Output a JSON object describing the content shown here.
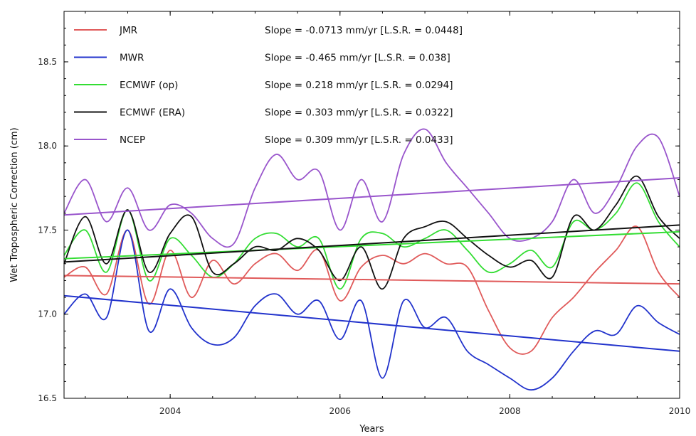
{
  "chart_data": {
    "type": "line",
    "title": "",
    "xlabel": "Years",
    "ylabel": "Wet Tropospheric Correction (cm)",
    "xlim": [
      2002.75,
      2010.0
    ],
    "ylim": [
      16.5,
      18.8
    ],
    "xticks": [
      2004,
      2006,
      2008,
      2010
    ],
    "xtick_labels": [
      "2004",
      "2006",
      "2008",
      "2010"
    ],
    "yticks": [
      16.5,
      17.0,
      17.5,
      18.0,
      18.5
    ],
    "ytick_labels": [
      "16.5",
      "17.0",
      "17.5",
      "18.0",
      "18.5"
    ],
    "grid": false,
    "legend_position": "top-left",
    "series": [
      {
        "name": "JMR",
        "color": "#e05a5a",
        "annotation": "Slope = -0.0713 mm/yr [L.S.R. = 0.0448]",
        "x": [
          2002.75,
          2003.0,
          2003.25,
          2003.5,
          2003.75,
          2004.0,
          2004.25,
          2004.5,
          2004.75,
          2005.0,
          2005.25,
          2005.5,
          2005.75,
          2006.0,
          2006.25,
          2006.5,
          2006.75,
          2007.0,
          2007.25,
          2007.5,
          2007.75,
          2008.0,
          2008.25,
          2008.5,
          2008.75,
          2009.0,
          2009.25,
          2009.5,
          2009.75,
          2010.0
        ],
        "y": [
          17.22,
          17.28,
          17.12,
          17.5,
          17.06,
          17.38,
          17.1,
          17.32,
          17.18,
          17.3,
          17.36,
          17.26,
          17.38,
          17.08,
          17.28,
          17.35,
          17.3,
          17.36,
          17.3,
          17.28,
          17.02,
          16.8,
          16.78,
          16.98,
          17.1,
          17.25,
          17.38,
          17.52,
          17.25,
          17.1
        ],
        "trend": {
          "x": [
            2002.75,
            2010.0
          ],
          "y": [
            17.23,
            17.18
          ]
        }
      },
      {
        "name": "MWR",
        "color": "#2233cc",
        "annotation": "Slope = -0.465 mm/yr [L.S.R. = 0.038]",
        "x": [
          2002.75,
          2003.0,
          2003.25,
          2003.5,
          2003.75,
          2004.0,
          2004.25,
          2004.5,
          2004.75,
          2005.0,
          2005.25,
          2005.5,
          2005.75,
          2006.0,
          2006.25,
          2006.5,
          2006.75,
          2007.0,
          2007.25,
          2007.5,
          2007.75,
          2008.0,
          2008.25,
          2008.5,
          2008.75,
          2009.0,
          2009.25,
          2009.5,
          2009.75,
          2010.0
        ],
        "y": [
          17.0,
          17.12,
          16.98,
          17.5,
          16.9,
          17.15,
          16.92,
          16.82,
          16.86,
          17.05,
          17.12,
          17.0,
          17.08,
          16.85,
          17.08,
          16.62,
          17.08,
          16.92,
          16.98,
          16.78,
          16.7,
          16.62,
          16.55,
          16.62,
          16.78,
          16.9,
          16.88,
          17.05,
          16.95,
          16.88
        ],
        "trend": {
          "x": [
            2002.75,
            2010.0
          ],
          "y": [
            17.11,
            16.78
          ]
        }
      },
      {
        "name": "ECMWF (op)",
        "color": "#33dd33",
        "annotation": "Slope = 0.218 mm/yr [L.S.R. = 0.0294]",
        "x": [
          2002.75,
          2003.0,
          2003.25,
          2003.5,
          2003.75,
          2004.0,
          2004.25,
          2004.5,
          2004.75,
          2005.0,
          2005.25,
          2005.5,
          2005.75,
          2006.0,
          2006.25,
          2006.5,
          2006.75,
          2007.0,
          2007.25,
          2007.5,
          2007.75,
          2008.0,
          2008.25,
          2008.5,
          2008.75,
          2009.0,
          2009.25,
          2009.5,
          2009.75,
          2010.0
        ],
        "y": [
          17.35,
          17.5,
          17.25,
          17.62,
          17.2,
          17.45,
          17.35,
          17.22,
          17.3,
          17.45,
          17.48,
          17.4,
          17.45,
          17.15,
          17.45,
          17.48,
          17.4,
          17.45,
          17.5,
          17.38,
          17.25,
          17.3,
          17.38,
          17.28,
          17.55,
          17.5,
          17.6,
          17.78,
          17.55,
          17.4
        ],
        "trend": {
          "x": [
            2002.75,
            2010.0
          ],
          "y": [
            17.33,
            17.49
          ]
        }
      },
      {
        "name": "ECMWF (ERA)",
        "color": "#111111",
        "annotation": "Slope = 0.303 mm/yr [L.S.R. = 0.0322]",
        "x": [
          2002.75,
          2003.0,
          2003.25,
          2003.5,
          2003.75,
          2004.0,
          2004.25,
          2004.5,
          2004.75,
          2005.0,
          2005.25,
          2005.5,
          2005.75,
          2006.0,
          2006.25,
          2006.5,
          2006.75,
          2007.0,
          2007.25,
          2007.5,
          2007.75,
          2008.0,
          2008.25,
          2008.5,
          2008.75,
          2009.0,
          2009.25,
          2009.5,
          2009.75,
          2010.0
        ],
        "y": [
          17.3,
          17.58,
          17.3,
          17.62,
          17.25,
          17.48,
          17.58,
          17.25,
          17.3,
          17.4,
          17.38,
          17.45,
          17.38,
          17.2,
          17.4,
          17.15,
          17.45,
          17.52,
          17.55,
          17.45,
          17.35,
          17.28,
          17.32,
          17.22,
          17.58,
          17.5,
          17.65,
          17.82,
          17.58,
          17.45
        ],
        "trend": {
          "x": [
            2002.75,
            2010.0
          ],
          "y": [
            17.31,
            17.53
          ]
        }
      },
      {
        "name": "NCEP",
        "color": "#9955cc",
        "annotation": "Slope = 0.309 mm/yr [L.S.R. = 0.0433]",
        "x": [
          2002.75,
          2003.0,
          2003.25,
          2003.5,
          2003.75,
          2004.0,
          2004.25,
          2004.5,
          2004.75,
          2005.0,
          2005.25,
          2005.5,
          2005.75,
          2006.0,
          2006.25,
          2006.5,
          2006.75,
          2007.0,
          2007.25,
          2007.5,
          2007.75,
          2008.0,
          2008.25,
          2008.5,
          2008.75,
          2009.0,
          2009.25,
          2009.5,
          2009.75,
          2010.0
        ],
        "y": [
          17.6,
          17.8,
          17.55,
          17.75,
          17.5,
          17.65,
          17.6,
          17.45,
          17.42,
          17.75,
          17.95,
          17.8,
          17.85,
          17.5,
          17.8,
          17.55,
          17.95,
          18.1,
          17.9,
          17.75,
          17.6,
          17.45,
          17.45,
          17.55,
          17.8,
          17.6,
          17.75,
          18.0,
          18.05,
          17.7
        ],
        "trend": {
          "x": [
            2002.75,
            2010.0
          ],
          "y": [
            17.59,
            17.81
          ]
        }
      }
    ]
  }
}
